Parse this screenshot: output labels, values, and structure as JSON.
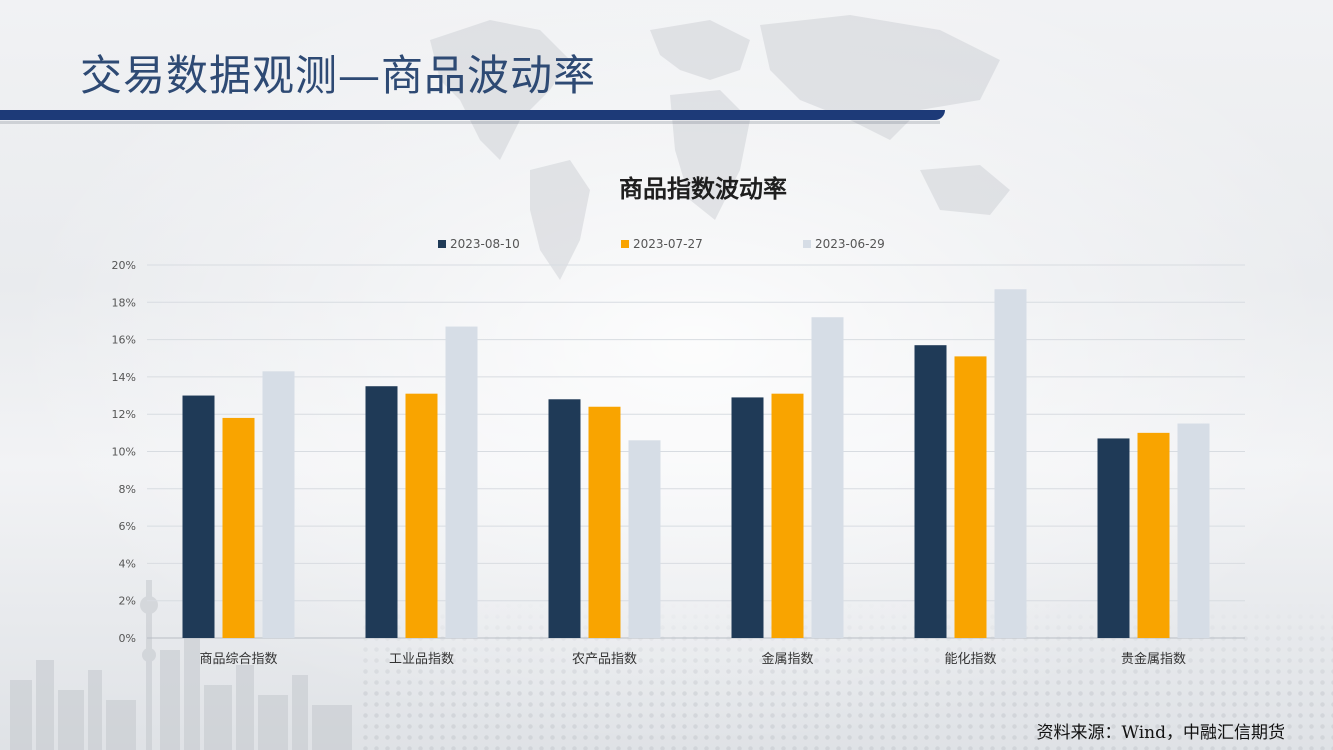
{
  "slide": {
    "title": "交易数据观测—商品波动率",
    "source": "资料来源：Wind，中融汇信期货",
    "accent_color": "#1d3a78"
  },
  "chart_data": {
    "type": "bar",
    "title": "商品指数波动率",
    "xlabel": "",
    "ylabel": "",
    "ylim": [
      0,
      0.2
    ],
    "y_ticks": [
      "0%",
      "2%",
      "4%",
      "6%",
      "8%",
      "10%",
      "12%",
      "14%",
      "16%",
      "18%",
      "20%"
    ],
    "grid": true,
    "legend_position": "top",
    "categories": [
      "商品综合指数",
      "工业品指数",
      "农产品指数",
      "金属指数",
      "能化指数",
      "贵金属指数"
    ],
    "series": [
      {
        "name": "2023-08-10",
        "color": "#1f3a57",
        "values": [
          0.13,
          0.135,
          0.128,
          0.129,
          0.157,
          0.107
        ]
      },
      {
        "name": "2023-07-27",
        "color": "#f9a400",
        "values": [
          0.118,
          0.131,
          0.124,
          0.131,
          0.151,
          0.11
        ]
      },
      {
        "name": "2023-06-29",
        "color": "#d6dde6",
        "values": [
          0.143,
          0.167,
          0.106,
          0.172,
          0.187,
          0.115
        ]
      }
    ]
  }
}
